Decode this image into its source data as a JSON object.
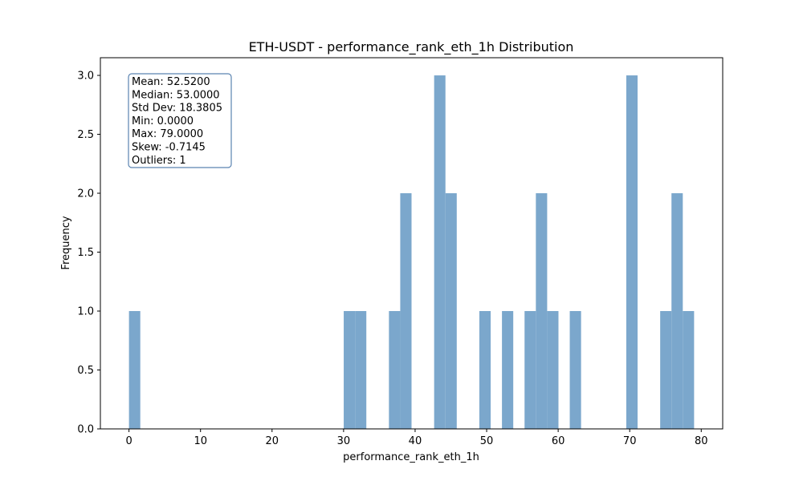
{
  "chart_data": {
    "type": "bar",
    "title": "ETH-USDT - performance_rank_eth_1h Distribution",
    "xlabel": "performance_rank_eth_1h",
    "ylabel": "Frequency",
    "xlim": [
      -4.0,
      83.0
    ],
    "ylim": [
      0,
      3.15
    ],
    "x_ticks": [
      0,
      10,
      20,
      30,
      40,
      50,
      60,
      70,
      80
    ],
    "x_tick_labels": [
      "0",
      "10",
      "20",
      "30",
      "40",
      "50",
      "60",
      "70",
      "80"
    ],
    "y_ticks": [
      0,
      0.5,
      1.0,
      1.5,
      2.0,
      2.5,
      3.0
    ],
    "y_tick_labels": [
      "0.0",
      "0.5",
      "1.0",
      "1.5",
      "2.0",
      "2.5",
      "3.0"
    ],
    "grid": false,
    "bar_color": "#7BA7CC",
    "bins": [
      {
        "x0": 0.0,
        "x1": 1.58,
        "count": 1
      },
      {
        "x0": 30.02,
        "x1": 31.6,
        "count": 1
      },
      {
        "x0": 31.6,
        "x1": 33.18,
        "count": 1
      },
      {
        "x0": 36.34,
        "x1": 37.92,
        "count": 1
      },
      {
        "x0": 37.92,
        "x1": 39.5,
        "count": 2
      },
      {
        "x0": 42.66,
        "x1": 44.24,
        "count": 3
      },
      {
        "x0": 44.24,
        "x1": 45.82,
        "count": 2
      },
      {
        "x0": 48.98,
        "x1": 50.56,
        "count": 1
      },
      {
        "x0": 52.14,
        "x1": 53.72,
        "count": 1
      },
      {
        "x0": 55.3,
        "x1": 56.88,
        "count": 1
      },
      {
        "x0": 56.88,
        "x1": 58.46,
        "count": 2
      },
      {
        "x0": 58.46,
        "x1": 60.04,
        "count": 1
      },
      {
        "x0": 61.62,
        "x1": 63.2,
        "count": 1
      },
      {
        "x0": 69.52,
        "x1": 71.1,
        "count": 3
      },
      {
        "x0": 74.26,
        "x1": 75.84,
        "count": 1
      },
      {
        "x0": 75.84,
        "x1": 77.42,
        "count": 2
      },
      {
        "x0": 77.42,
        "x1": 79.0,
        "count": 1
      }
    ],
    "stats_box": {
      "lines": [
        "Mean: 52.5200",
        "Median: 53.0000",
        "Std Dev: 18.3805",
        "Min: 0.0000",
        "Max: 79.0000",
        "Skew: -0.7145",
        "Outliers: 1"
      ],
      "border_color": "#5B84B1",
      "placement": "top-left"
    }
  }
}
